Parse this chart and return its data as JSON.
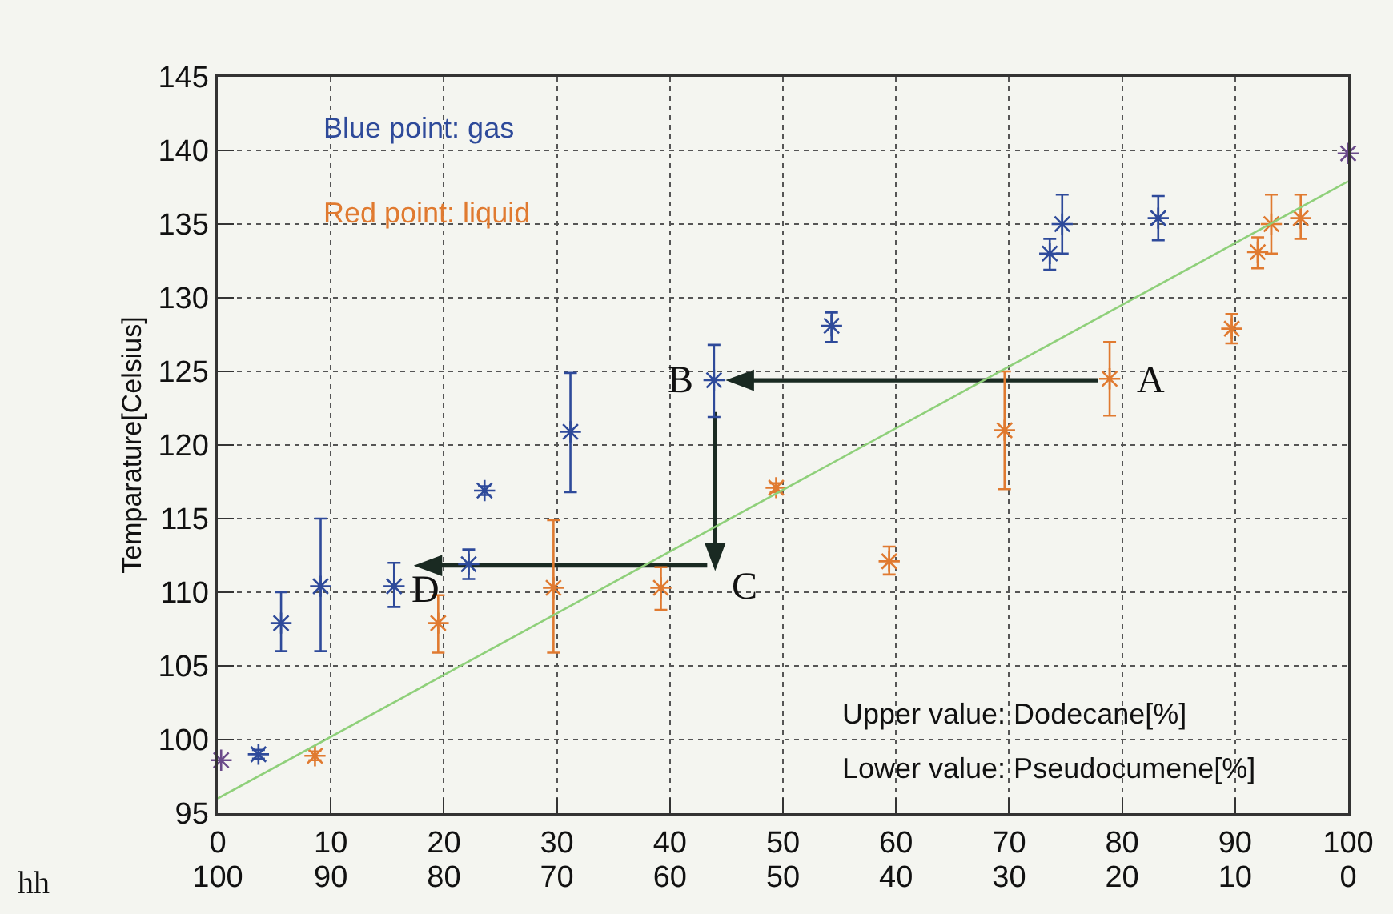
{
  "chart_data": {
    "type": "scatter",
    "ylabel": "Temparature[Celsius]",
    "xlim": [
      0,
      100
    ],
    "ylim": [
      95,
      145
    ],
    "xticks": [
      0,
      10,
      20,
      30,
      40,
      50,
      60,
      70,
      80,
      90,
      100
    ],
    "x2lim": [
      100,
      0
    ],
    "x2ticks": [
      100,
      90,
      80,
      70,
      60,
      50,
      40,
      30,
      20,
      10,
      0
    ],
    "yticks": [
      95,
      100,
      105,
      110,
      115,
      120,
      125,
      130,
      135,
      140,
      145
    ],
    "grid": true,
    "marker": "cross",
    "series": [
      {
        "color": "#2e4a9a",
        "x": [
          3.6,
          5.6,
          9.1,
          15.6,
          22.2,
          23.6,
          31.2,
          43.9,
          54.3,
          73.6,
          74.7,
          83.2
        ],
        "values": [
          99.0,
          107.9,
          110.4,
          110.4,
          111.9,
          116.9,
          120.9,
          124.4,
          128.1,
          133.0,
          135.0,
          135.4
        ],
        "errors": [
          [
            98.7,
            99.3
          ],
          [
            106,
            110
          ],
          [
            106,
            115
          ],
          [
            109,
            112
          ],
          [
            110.9,
            112.9
          ],
          [
            116.6,
            117.2
          ],
          [
            116.8,
            124.9
          ],
          [
            121.9,
            126.8
          ],
          [
            127,
            129
          ],
          [
            131.9,
            134
          ],
          [
            133,
            137
          ],
          [
            133.9,
            136.9
          ]
        ]
      },
      {
        "color": "#e07a30",
        "x": [
          8.6,
          19.5,
          29.7,
          39.2,
          49.4,
          59.4,
          69.6,
          78.9,
          89.7,
          92.0,
          93.2,
          95.8
        ],
        "values": [
          98.9,
          107.9,
          110.3,
          110.3,
          117.1,
          112.1,
          121.0,
          124.5,
          127.9,
          133.1,
          135.0,
          135.4
        ],
        "errors": [
          [
            98.6,
            99.2
          ],
          [
            105.9,
            109.8
          ],
          [
            105.9,
            114.9
          ],
          [
            108.8,
            111.7
          ],
          [
            116.8,
            117.4
          ],
          [
            111.2,
            113.1
          ],
          [
            117,
            125
          ],
          [
            122,
            127
          ],
          [
            126.9,
            128.9
          ],
          [
            132,
            134.1
          ],
          [
            133,
            137
          ],
          [
            134,
            137
          ]
        ]
      },
      {
        "color": "#6a4a8a",
        "x": [
          0.3,
          100
        ],
        "values": [
          98.6,
          139.8
        ]
      },
      {
        "type": "line",
        "color": "#8fd07a",
        "marker": "none",
        "x": [
          0,
          100
        ],
        "values": [
          96.0,
          137.9
        ]
      }
    ],
    "annotations": [
      "Blue point: gas",
      "Red point: liquid",
      {
        "text": "A",
        "x": 79,
        "y": 124.4
      },
      {
        "text": "B",
        "x": 44,
        "y": 124.4
      },
      {
        "text": "C",
        "x": 39.2,
        "y": 110.3
      },
      {
        "text": "D",
        "x": 19.5,
        "y": 107.9
      },
      "Upper value: Dodecane[%]",
      "Lower value: Pseudocumene[%]",
      "hh"
    ]
  }
}
